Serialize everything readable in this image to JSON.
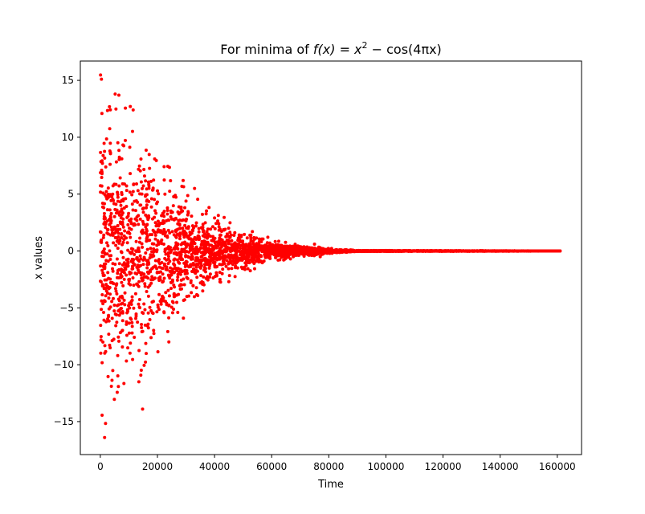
{
  "chart_data": {
    "type": "scatter",
    "title_prefix": "For minima of ",
    "title_math": "f(x) = x",
    "title_exponent": "2",
    "title_suffix": " − cos(4πx)",
    "xlabel": "Time",
    "ylabel": "x values",
    "xlim": [
      -7000,
      168500
    ],
    "ylim": [
      -17.9,
      16.7
    ],
    "xticks": [
      {
        "value": 0,
        "label": "0"
      },
      {
        "value": 20000,
        "label": "20000"
      },
      {
        "value": 40000,
        "label": "40000"
      },
      {
        "value": 60000,
        "label": "60000"
      },
      {
        "value": 80000,
        "label": "80000"
      },
      {
        "value": 100000,
        "label": "100000"
      },
      {
        "value": 120000,
        "label": "120000"
      },
      {
        "value": 140000,
        "label": "140000"
      },
      {
        "value": 160000,
        "label": "160000"
      }
    ],
    "yticks": [
      {
        "value": 15,
        "label": "15"
      },
      {
        "value": 10,
        "label": "10"
      },
      {
        "value": 5,
        "label": "5"
      },
      {
        "value": 0,
        "label": "0"
      },
      {
        "value": -5,
        "label": "−5"
      },
      {
        "value": -10,
        "label": "−10"
      },
      {
        "value": -15,
        "label": "−15"
      }
    ],
    "grid": false,
    "marker_color": "#ff0000",
    "series": [
      {
        "name": "",
        "envelope": [
          {
            "x": 0,
            "amplitude": 16.0
          },
          {
            "x": 5000,
            "amplitude": 14.0
          },
          {
            "x": 12000,
            "amplitude": 12.7
          },
          {
            "x": 20000,
            "amplitude": 9.0
          },
          {
            "x": 30000,
            "amplitude": 6.0
          },
          {
            "x": 40000,
            "amplitude": 3.5
          },
          {
            "x": 50000,
            "amplitude": 2.0
          },
          {
            "x": 60000,
            "amplitude": 1.1
          },
          {
            "x": 70000,
            "amplitude": 0.6
          },
          {
            "x": 78000,
            "amplitude": 0.3
          },
          {
            "x": 90000,
            "amplitude": 0.05
          },
          {
            "x": 161000,
            "amplitude": 0.0
          }
        ],
        "outliers": [
          {
            "x": 400,
            "y": 15.1
          },
          {
            "x": 1500,
            "y": -16.4
          },
          {
            "x": 5200,
            "y": 13.8
          },
          {
            "x": 6500,
            "y": 13.7
          },
          {
            "x": 10500,
            "y": 12.7
          },
          {
            "x": 11500,
            "y": 12.4
          },
          {
            "x": 14800,
            "y": -13.9
          },
          {
            "x": 13500,
            "y": -11.5
          },
          {
            "x": 24000,
            "y": -8.0
          },
          {
            "x": 29000,
            "y": 6.2
          },
          {
            "x": 33000,
            "y": 5.5
          },
          {
            "x": 45000,
            "y": -2.7
          },
          {
            "x": 75000,
            "y": 0.6
          },
          {
            "x": 77000,
            "y": -0.5
          }
        ]
      }
    ]
  }
}
